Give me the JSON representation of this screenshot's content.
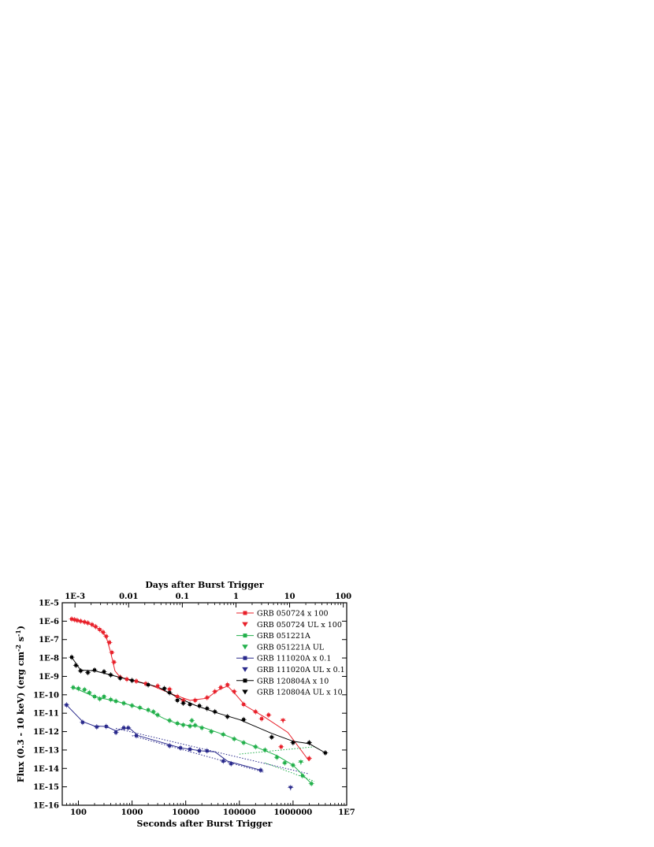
{
  "chart_data": {
    "type": "scatter",
    "xlabel": "Seconds after Burst Trigger",
    "x2label": "Days after Burst Trigger",
    "ylabel": "Flux (0.3 - 10 keV) (erg cm^-2 s^-1)",
    "x_scale": "log",
    "y_scale": "log",
    "xlim": [
      50,
      10000000
    ],
    "ylim": [
      1e-16,
      1e-05
    ],
    "x_ticks": [
      100,
      1000,
      10000,
      100000,
      1000000,
      10000000
    ],
    "x_tick_labels": [
      "100",
      "1000",
      "10000",
      "100000",
      "1000000",
      "1E7"
    ],
    "x2_ticks": [
      0.001,
      0.01,
      0.1,
      1,
      10,
      100
    ],
    "x2_tick_labels": [
      "1E-3",
      "0.01",
      "0.1",
      "1",
      "10",
      "100"
    ],
    "y_ticks": [
      1e-05,
      1e-06,
      1e-07,
      1e-08,
      1e-09,
      1e-10,
      1e-11,
      1e-12,
      1e-13,
      1e-14,
      1e-15,
      1e-16
    ],
    "y_tick_labels": [
      "1E-5",
      "1E-6",
      "1E-7",
      "1E-8",
      "1E-9",
      "1E-10",
      "1E-11",
      "1E-12",
      "1E-13",
      "1E-14",
      "1E-15",
      "1E-16"
    ],
    "legend_position": "top-right",
    "series": [
      {
        "name": "GRB 050724 x 100",
        "color": "#e8202a",
        "marker": "square",
        "points": [
          [
            75,
            1.3e-06
          ],
          [
            85,
            1.2e-06
          ],
          [
            95,
            1.1e-06
          ],
          [
            110,
            1e-06
          ],
          [
            130,
            9e-07
          ],
          [
            150,
            8e-07
          ],
          [
            180,
            6.5e-07
          ],
          [
            210,
            5e-07
          ],
          [
            250,
            3.5e-07
          ],
          [
            290,
            2.5e-07
          ],
          [
            330,
            1.5e-07
          ],
          [
            380,
            7e-08
          ],
          [
            420,
            2e-08
          ],
          [
            460,
            6e-09
          ],
          [
            600,
            9e-10
          ],
          [
            800,
            7e-10
          ],
          [
            1200,
            5.5e-10
          ],
          [
            1800,
            4e-10
          ],
          [
            3000,
            3e-10
          ],
          [
            5000,
            2e-10
          ],
          [
            7000,
            8e-11
          ],
          [
            9000,
            5e-11
          ],
          [
            15000,
            5e-11
          ],
          [
            25000,
            7e-11
          ],
          [
            35000,
            1.5e-10
          ],
          [
            45000,
            2.5e-10
          ],
          [
            60000,
            3.5e-10
          ],
          [
            80000,
            1.5e-10
          ],
          [
            120000,
            3e-11
          ],
          [
            200000,
            1.2e-11
          ],
          [
            260000,
            5e-12
          ],
          [
            350000,
            8e-12
          ],
          [
            600000,
            1.5e-13
          ],
          [
            2000000,
            3.5e-14
          ]
        ],
        "curve": [
          [
            75,
            1.3e-06
          ],
          [
            150,
            8e-07
          ],
          [
            250,
            3.5e-07
          ],
          [
            330,
            1.4e-07
          ],
          [
            400,
            2e-08
          ],
          [
            480,
            2e-09
          ],
          [
            600,
            9e-10
          ],
          [
            2000,
            3.8e-10
          ],
          [
            6000,
            1e-10
          ],
          [
            12000,
            5e-11
          ],
          [
            25000,
            6.5e-11
          ],
          [
            40000,
            1.8e-10
          ],
          [
            60000,
            3e-10
          ],
          [
            80000,
            1.3e-10
          ],
          [
            130000,
            2.5e-11
          ],
          [
            300000,
            6e-12
          ],
          [
            800000,
            9e-13
          ],
          [
            2000000,
            2.5e-14
          ]
        ]
      },
      {
        "name": "GRB 050724 UL x 100",
        "color": "#e8202a",
        "marker": "triangle-down",
        "points": [
          [
            650000,
            4e-12
          ]
        ]
      },
      {
        "name": "GRB 051221A",
        "color": "#22b04b",
        "marker": "square",
        "points": [
          [
            80,
            2.5e-10
          ],
          [
            100,
            2.2e-10
          ],
          [
            130,
            1.9e-10
          ],
          [
            160,
            1.3e-10
          ],
          [
            200,
            8e-11
          ],
          [
            250,
            6e-11
          ],
          [
            300,
            8e-11
          ],
          [
            400,
            5.5e-11
          ],
          [
            500,
            4.5e-11
          ],
          [
            700,
            3.5e-11
          ],
          [
            1000,
            2.6e-11
          ],
          [
            1400,
            2e-11
          ],
          [
            2000,
            1.5e-11
          ],
          [
            2500,
            1.2e-11
          ],
          [
            3000,
            8e-12
          ],
          [
            5000,
            4e-12
          ],
          [
            7000,
            2.8e-12
          ],
          [
            9000,
            2.3e-12
          ],
          [
            12000,
            2e-12
          ],
          [
            13000,
            4e-12
          ],
          [
            15000,
            2.2e-12
          ],
          [
            20000,
            1.6e-12
          ],
          [
            30000,
            1e-12
          ],
          [
            50000,
            7e-13
          ],
          [
            80000,
            4e-13
          ],
          [
            120000,
            2.5e-13
          ],
          [
            200000,
            1.5e-13
          ],
          [
            300000,
            1e-13
          ],
          [
            500000,
            4e-14
          ],
          [
            700000,
            2e-14
          ],
          [
            1000000,
            1.5e-14
          ],
          [
            1500000,
            4e-15
          ],
          [
            2200000,
            1.5e-15
          ]
        ],
        "curve": [
          [
            80,
            2.5e-10
          ],
          [
            200,
            8e-11
          ],
          [
            500,
            4.5e-11
          ],
          [
            1000,
            2.6e-11
          ],
          [
            2000,
            1.4e-11
          ],
          [
            4000,
            5e-12
          ],
          [
            7000,
            2.7e-12
          ],
          [
            12000,
            2.1e-12
          ],
          [
            20000,
            1.8e-12
          ],
          [
            50000,
            7e-13
          ],
          [
            200000,
            1.5e-13
          ],
          [
            500000,
            5e-14
          ],
          [
            1000000,
            1.5e-14
          ],
          [
            2200000,
            1.5e-15
          ]
        ]
      },
      {
        "name": "GRB 051221A UL",
        "color": "#22b04b",
        "marker": "triangle-down",
        "points": [
          [
            1400000,
            2.2e-14
          ]
        ]
      },
      {
        "name": "GRB 111020A x 0.1",
        "color": "#2a2a8c",
        "marker": "square",
        "points": [
          [
            60,
            2.8e-11
          ],
          [
            120,
            3.2e-12
          ],
          [
            220,
            1.8e-12
          ],
          [
            330,
            1.9e-12
          ],
          [
            500,
            9e-13
          ],
          [
            700,
            1.6e-12
          ],
          [
            850,
            1.6e-12
          ],
          [
            1200,
            6e-13
          ],
          [
            5000,
            1.7e-13
          ],
          [
            8000,
            1.3e-13
          ],
          [
            12000,
            1.1e-13
          ],
          [
            18000,
            9e-14
          ],
          [
            25000,
            9e-14
          ],
          [
            50000,
            2.5e-14
          ],
          [
            70000,
            1.8e-14
          ],
          [
            250000,
            8e-15
          ]
        ],
        "curve": [
          [
            60,
            2.8e-11
          ],
          [
            120,
            3.5e-12
          ],
          [
            200,
            2e-12
          ],
          [
            330,
            1.9e-12
          ],
          [
            500,
            1.1e-12
          ],
          [
            700,
            1.5e-12
          ],
          [
            900,
            1.5e-12
          ],
          [
            1300,
            6e-13
          ],
          [
            3000,
            3e-13
          ],
          [
            8000,
            1.3e-13
          ],
          [
            20000,
            9e-14
          ],
          [
            35000,
            8e-14
          ],
          [
            60000,
            2.5e-14
          ],
          [
            150000,
            1.2e-14
          ],
          [
            250000,
            8e-15
          ]
        ]
      },
      {
        "name": "GRB 111020A UL x 0.1",
        "color": "#2a2a8c",
        "marker": "triangle-down",
        "points": [
          [
            900000,
            9e-16
          ]
        ]
      },
      {
        "name": "GRB 120804A x 10",
        "color": "#000000",
        "marker": "square",
        "points": [
          [
            75,
            1.1e-08
          ],
          [
            90,
            4e-09
          ],
          [
            110,
            2e-09
          ],
          [
            150,
            1.6e-09
          ],
          [
            200,
            2.2e-09
          ],
          [
            300,
            1.8e-09
          ],
          [
            400,
            1.2e-09
          ],
          [
            600,
            8e-10
          ],
          [
            1000,
            6e-10
          ],
          [
            2000,
            3.5e-10
          ],
          [
            4000,
            2.2e-10
          ],
          [
            5000,
            1.3e-10
          ],
          [
            7000,
            5e-11
          ],
          [
            9000,
            3.5e-11
          ],
          [
            12000,
            3e-11
          ],
          [
            18000,
            2.5e-11
          ],
          [
            25000,
            1.8e-11
          ],
          [
            35000,
            1.2e-11
          ],
          [
            60000,
            6.5e-12
          ],
          [
            120000,
            4.5e-12
          ],
          [
            400000,
            5e-13
          ],
          [
            1000000,
            2.5e-13
          ],
          [
            2000000,
            2.5e-13
          ],
          [
            4000000,
            7e-14
          ]
        ],
        "curve": [
          [
            75,
            1.1e-08
          ],
          [
            110,
            2.2e-09
          ],
          [
            200,
            2e-09
          ],
          [
            400,
            1.2e-09
          ],
          [
            1000,
            6e-10
          ],
          [
            3000,
            2.7e-10
          ],
          [
            8000,
            6e-11
          ],
          [
            15000,
            2.7e-11
          ],
          [
            40000,
            1e-11
          ],
          [
            100000,
            4.5e-12
          ],
          [
            400000,
            8e-13
          ],
          [
            1000000,
            3e-13
          ],
          [
            2000000,
            2.2e-13
          ],
          [
            4000000,
            7e-14
          ]
        ]
      },
      {
        "name": "GRB 120804A UL x 10",
        "color": "#000000",
        "marker": "triangle-down",
        "points": []
      }
    ],
    "dotted_fits": [
      {
        "color": "#22b04b",
        "points": [
          [
            100000,
            6e-14
          ],
          [
            2500000,
            1.5e-13
          ]
        ]
      },
      {
        "color": "#22b04b",
        "points": [
          [
            300000,
            2e-14
          ],
          [
            2500000,
            2e-15
          ]
        ]
      },
      {
        "color": "#2a2a8c",
        "points": [
          [
            500,
            1.5e-12
          ],
          [
            2000000,
            5e-15
          ]
        ]
      },
      {
        "color": "#2a2a8c",
        "points": [
          [
            1000,
            6e-13
          ],
          [
            300000,
            6e-15
          ]
        ]
      }
    ]
  }
}
